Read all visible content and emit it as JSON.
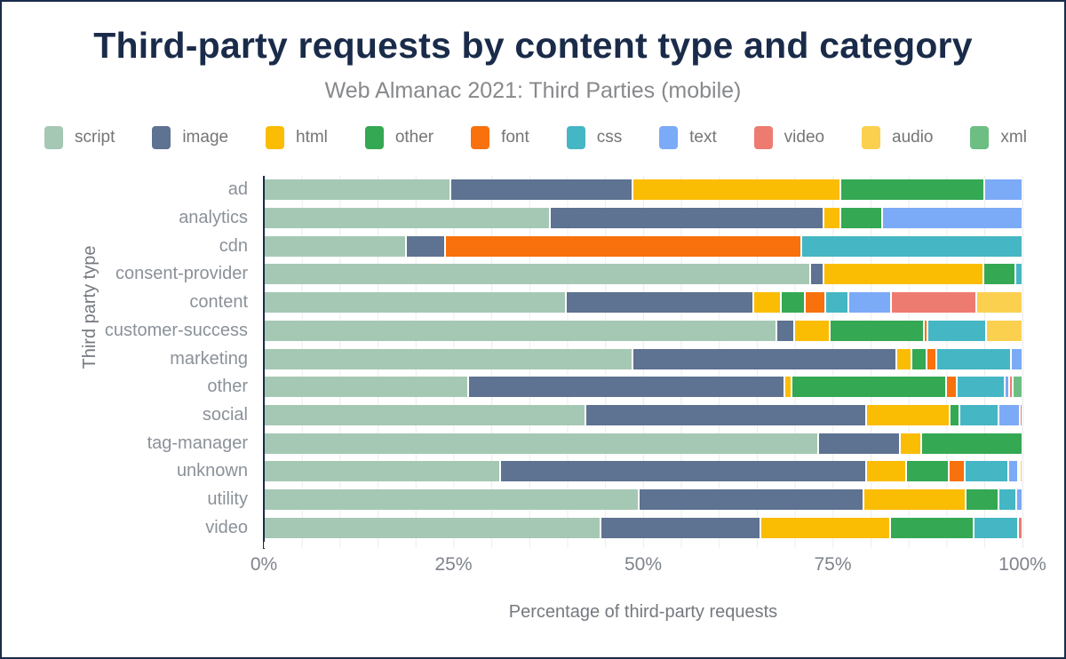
{
  "title": "Third-party requests by content type and category",
  "subtitle": "Web Almanac 2021: Third Parties (mobile)",
  "chart_data": {
    "type": "bar",
    "orientation": "horizontal",
    "stacked": true,
    "title": "Third-party requests by content type and category",
    "subtitle": "Web Almanac 2021: Third Parties (mobile)",
    "xlabel": "Percentage of third-party requests",
    "ylabel": "Third party type",
    "xlim": [
      0,
      100
    ],
    "x_tick_labels": [
      "0%",
      "25%",
      "50%",
      "75%",
      "100%"
    ],
    "x_tick_values": [
      0,
      25,
      50,
      75,
      100
    ],
    "gridline_step_percent": 5,
    "legend_position": "top",
    "grid": true,
    "categories": [
      "ad",
      "analytics",
      "cdn",
      "consent-provider",
      "content",
      "customer-success",
      "marketing",
      "other",
      "social",
      "tag-manager",
      "unknown",
      "utility",
      "video"
    ],
    "series": [
      {
        "name": "script",
        "color": "#a5c8b4",
        "values": [
          24.6,
          37.7,
          18.7,
          72.0,
          39.8,
          67.6,
          48.6,
          26.9,
          42.4,
          73.1,
          31.1,
          49.4,
          44.4
        ]
      },
      {
        "name": "image",
        "color": "#5e7291",
        "values": [
          24.0,
          36.1,
          5.2,
          1.8,
          24.7,
          2.3,
          34.8,
          41.7,
          37.0,
          10.7,
          48.3,
          29.6,
          21.1
        ]
      },
      {
        "name": "html",
        "color": "#fbbc04",
        "values": [
          27.4,
          2.2,
          0,
          21.0,
          3.6,
          4.7,
          2.0,
          1.0,
          11.0,
          2.8,
          5.3,
          13.5,
          17.1
        ]
      },
      {
        "name": "other",
        "color": "#34a853",
        "values": [
          19.0,
          5.5,
          0,
          4.3,
          3.2,
          12.4,
          2.0,
          20.3,
          1.3,
          13.4,
          5.6,
          4.3,
          11.0
        ]
      },
      {
        "name": "font",
        "color": "#f8710d",
        "values": [
          0,
          0,
          46.9,
          0,
          2.7,
          0.5,
          1.2,
          1.4,
          0,
          0,
          2.1,
          0,
          0
        ]
      },
      {
        "name": "css",
        "color": "#45b6c3",
        "values": [
          0,
          0,
          29.2,
          0.9,
          3.0,
          7.7,
          9.9,
          6.4,
          5.1,
          0,
          5.8,
          2.4,
          5.8
        ]
      },
      {
        "name": "text",
        "color": "#7baaf7",
        "values": [
          5.0,
          18.5,
          0,
          0,
          5.7,
          0,
          1.5,
          0.5,
          2.9,
          0,
          1.3,
          0.8,
          0
        ]
      },
      {
        "name": "video",
        "color": "#ee7b70",
        "values": [
          0,
          0,
          0,
          0,
          11.2,
          0,
          0,
          0.5,
          0.3,
          0,
          0.2,
          0,
          0.6
        ]
      },
      {
        "name": "audio",
        "color": "#fcd04f",
        "values": [
          0,
          0,
          0,
          0,
          6.1,
          4.8,
          0,
          0,
          0,
          0,
          0.3,
          0,
          0
        ]
      },
      {
        "name": "xml",
        "color": "#6dbe82",
        "values": [
          0,
          0,
          0,
          0,
          0,
          0,
          0,
          1.3,
          0,
          0,
          0,
          0,
          0
        ]
      }
    ],
    "colors": {
      "title": "#1a2b4a",
      "subtitle": "#87898c",
      "axis_line": "#1a2b4a",
      "gridline": "#ececec",
      "tick_label": "#7e838b",
      "category_label": "#8b9199",
      "legend_label": "#757575"
    }
  }
}
